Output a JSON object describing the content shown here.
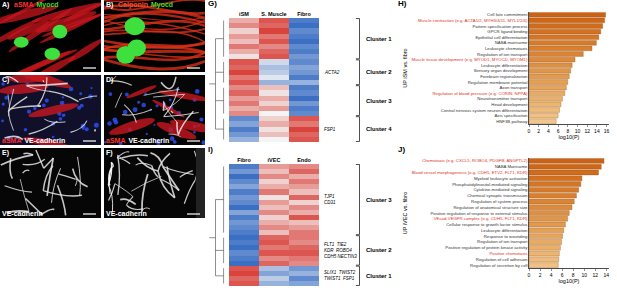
{
  "images": [
    {
      "letter": "A)",
      "stains": [
        {
          "text": "aSMA",
          "color": "#ff3030"
        },
        {
          "text": "Myocd",
          "color": "#33dd33"
        }
      ]
    },
    {
      "letter": "B)",
      "stains": [
        {
          "text": "Calponin",
          "color": "#ff4d2e"
        },
        {
          "text": "Myocd",
          "color": "#33dd33"
        }
      ]
    },
    {
      "letter": "C)",
      "stains": [
        {
          "text": "aSMA",
          "color": "#ff3030"
        },
        {
          "text": "VE-cadherin",
          "color": "#ffffff"
        }
      ]
    },
    {
      "letter": "D)",
      "stains": [
        {
          "text": "aSMA",
          "color": "#ff3030"
        },
        {
          "text": "VE-cadherin",
          "color": "#ffffff"
        }
      ]
    },
    {
      "letter": "E)",
      "stains": [
        {
          "text": "VE-cadherin",
          "color": "#ffffff"
        }
      ]
    },
    {
      "letter": "F)",
      "stains": [
        {
          "text": "VE-cadherin",
          "color": "#ffffff"
        }
      ]
    }
  ],
  "chart_data": [
    {
      "type": "heatmap",
      "title": "G)",
      "x": [
        "iSM",
        "S. Muscle",
        "Fibro"
      ],
      "zlim": [
        -1,
        1
      ],
      "cells": [
        [
          0.4,
          0.9,
          -0.9
        ],
        [
          0.6,
          0.8,
          -1.0
        ],
        [
          0.2,
          1.0,
          -0.8
        ],
        [
          0.5,
          0.7,
          -0.9
        ],
        [
          0.3,
          0.9,
          -1.0
        ],
        [
          0.7,
          0.6,
          -0.8
        ],
        [
          0.4,
          0.8,
          -0.9
        ],
        [
          0.1,
          0.9,
          -0.7
        ],
        [
          0.9,
          -0.2,
          -0.8
        ],
        [
          0.8,
          -0.4,
          -0.6
        ],
        [
          1.0,
          -0.3,
          -0.7
        ],
        [
          0.7,
          -0.1,
          -0.9
        ],
        [
          0.9,
          -0.5,
          -0.5
        ],
        [
          0.6,
          0.3,
          -0.9
        ],
        [
          0.8,
          0.1,
          -0.8
        ],
        [
          0.5,
          0.4,
          -1.0
        ],
        [
          0.7,
          0.2,
          -0.7
        ],
        [
          0.4,
          0.5,
          -0.9
        ],
        [
          0.6,
          0.0,
          -0.8
        ],
        [
          -0.8,
          0.2,
          0.9
        ],
        [
          -0.6,
          0.4,
          0.7
        ],
        [
          -0.9,
          0.1,
          1.0
        ],
        [
          -0.7,
          0.3,
          0.8
        ],
        [
          -0.5,
          0.0,
          0.9
        ]
      ],
      "clusters": [
        {
          "name": "Cluster 1",
          "rows": [
            0,
            7
          ],
          "genes": []
        },
        {
          "name": "Cluster 2",
          "rows": [
            8,
            12
          ],
          "genes": [
            "ACTA2"
          ]
        },
        {
          "name": "Cluster 3",
          "rows": [
            13,
            18
          ],
          "genes": []
        },
        {
          "name": "Cluster 4",
          "rows": [
            19,
            23
          ],
          "genes": [
            "FSP1"
          ]
        }
      ],
      "tick_labels": "x"
    },
    {
      "type": "bar",
      "title": "H)",
      "orientation": "horizontal",
      "x_label": "log10(P)",
      "y_label": "UP iSM vs. fibro",
      "categories": [
        "Cell fate commitment",
        "Muscle contraction (e.g. ACTA1/2, MYH3/4/11, MYL1/2/4)",
        "Pattern specification process",
        "GPCR ligand binding",
        "Epithelial cell differentiation",
        "NABA matrisome",
        "Leukocyte chemotaxis",
        "Regulation of ion transport",
        "Muscle tissue development (e.g. MYOD1, MYOCD, MYOM1)",
        "Leukocyte differentiation",
        "Sensory organ development",
        "Forebrain regionalization",
        "Regulation membrane potential",
        "Axon transport",
        "Regulation of blood pressure (e.g. CORIN, NPPA)",
        "Neurotransmitter transport",
        "Head development",
        "Central nervous system neuron differentiation",
        "Axis specification",
        "HNF3B pathway"
      ],
      "values": [
        15.8,
        15.6,
        15.2,
        14.8,
        14.4,
        13.9,
        13.0,
        11.2,
        9.5,
        8.9,
        8.6,
        8.3,
        8.0,
        7.7,
        7.4,
        6.9,
        6.6,
        6.3,
        6.0,
        5.6
      ],
      "colors": [
        "#cc6214",
        "#ce6718",
        "#d06c1c",
        "#d27121",
        "#d47626",
        "#d67b2b",
        "#d88030",
        "#da8536",
        "#dc8a3c",
        "#de9042",
        "#e09548",
        "#e29a4e",
        "#e4a055",
        "#e6a55c",
        "#e8ab63",
        "#eab06a",
        "#ecb672",
        "#eebb7a",
        "#f0c182",
        "#f2c78b"
      ],
      "label_colors": [
        "#333333",
        "#e0301e",
        "#333333",
        "#333333",
        "#333333",
        "#333333",
        "#333333",
        "#333333",
        "#e0301e",
        "#333333",
        "#333333",
        "#333333",
        "#333333",
        "#333333",
        "#e0301e",
        "#333333",
        "#333333",
        "#333333",
        "#333333",
        "#333333"
      ],
      "xlim": [
        0,
        16.5
      ],
      "xticks": [
        0,
        2,
        4,
        6,
        8,
        10,
        12,
        14,
        16
      ],
      "grid": false
    },
    {
      "type": "heatmap",
      "title": "I)",
      "x": [
        "Fibro",
        "iVEC",
        "Endo"
      ],
      "zlim": [
        -1,
        1
      ],
      "cells": [
        [
          -0.9,
          0.5,
          0.6
        ],
        [
          -0.7,
          0.3,
          0.8
        ],
        [
          -1.0,
          0.6,
          0.4
        ],
        [
          -0.8,
          0.2,
          0.7
        ],
        [
          -0.6,
          0.4,
          0.5
        ],
        [
          -0.9,
          0.7,
          0.3
        ],
        [
          -0.7,
          0.1,
          0.8
        ],
        [
          -0.8,
          0.5,
          0.2
        ],
        [
          -1.0,
          0.3,
          0.6
        ],
        [
          -0.6,
          0.6,
          0.4
        ],
        [
          -0.9,
          0.2,
          0.9
        ],
        [
          -0.7,
          0.4,
          0.3
        ],
        [
          -0.8,
          0.6,
          0.5
        ],
        [
          -0.9,
          0.3,
          0.7
        ],
        [
          -1.0,
          0.8,
          0.7
        ],
        [
          -0.9,
          0.9,
          0.6
        ],
        [
          -1.0,
          0.7,
          0.8
        ],
        [
          -0.8,
          0.9,
          0.9
        ],
        [
          -0.9,
          0.6,
          0.7
        ],
        [
          -1.0,
          0.8,
          0.6
        ],
        [
          0.9,
          -0.4,
          -0.7
        ],
        [
          1.0,
          -0.6,
          -0.5
        ],
        [
          0.8,
          -0.3,
          -0.8
        ],
        [
          0.9,
          -0.5,
          -0.6
        ]
      ],
      "clusters": [
        {
          "name": "Cluster 3",
          "rows": [
            0,
            13
          ],
          "genes": [
            "TJP1",
            "CD31"
          ]
        },
        {
          "name": "Cluster 2",
          "rows": [
            14,
            19
          ],
          "genes": [
            "FLT1  TIE2",
            "KDR  ROBO4",
            "CDH5 NECTIN3"
          ]
        },
        {
          "name": "Cluster 1",
          "rows": [
            20,
            23
          ],
          "genes": [
            "SLIX1  TWIST2",
            "TWIST1  FSP1"
          ]
        }
      ],
      "tick_labels": "x"
    },
    {
      "type": "bar",
      "title": "J)",
      "orientation": "horizontal",
      "x_label": "log10(P)",
      "y_label": "UP iVEC vs. fibro",
      "categories": [
        "Chemotaxis (e.g. CXCL5, ROBO4, PDGFB, ANGPTL2)",
        "NABA Matrisome",
        "Blood vessel morphogenesis (e.g. CDH5, ETV2, FLT1, KDR)",
        "Myeloid leukocyte activation",
        "Phosphatidylinositol-mediated signaling",
        "Cytokine-mediated signaling",
        "Chemical synaptic transmission",
        "Regulation of system process",
        "Regulation of anatomical structure size",
        "Positive regulation of response to external stimulus",
        "VEcad-VEGFR complex (e.g. CDH5, FLT1, KDR)",
        "Cellular response to growth factor stimulus",
        "Leukocyte differentiation",
        "Response to wounding",
        "Regulation of ion transport",
        "Positive regulation of protein kinase activity",
        "Positive chemotaxis",
        "Regulation of cell adhesion",
        "Regulation of secretion by cell"
      ],
      "values": [
        13.6,
        13.1,
        12.6,
        9.6,
        9.4,
        9.0,
        8.6,
        8.2,
        7.8,
        7.3,
        7.0,
        6.6,
        6.3,
        6.1,
        5.9,
        5.7,
        5.5,
        5.4,
        5.3
      ],
      "colors": [
        "#cc6214",
        "#ce6718",
        "#d06c1c",
        "#d27121",
        "#d47626",
        "#d67b2b",
        "#d88030",
        "#da8536",
        "#dc8a3c",
        "#de9042",
        "#e09548",
        "#e29a4e",
        "#e4a055",
        "#e6a55c",
        "#e8ab63",
        "#eab06a",
        "#ecb672",
        "#eebb7a",
        "#f0c182"
      ],
      "label_colors": [
        "#e0301e",
        "#333333",
        "#e0301e",
        "#333333",
        "#333333",
        "#333333",
        "#333333",
        "#333333",
        "#333333",
        "#333333",
        "#e0301e",
        "#333333",
        "#333333",
        "#333333",
        "#333333",
        "#333333",
        "#e0301e",
        "#333333",
        "#333333"
      ],
      "xlim": [
        0,
        14.5
      ],
      "xticks": [
        0,
        2,
        4,
        6,
        8,
        10,
        12,
        14
      ],
      "grid": false
    }
  ]
}
